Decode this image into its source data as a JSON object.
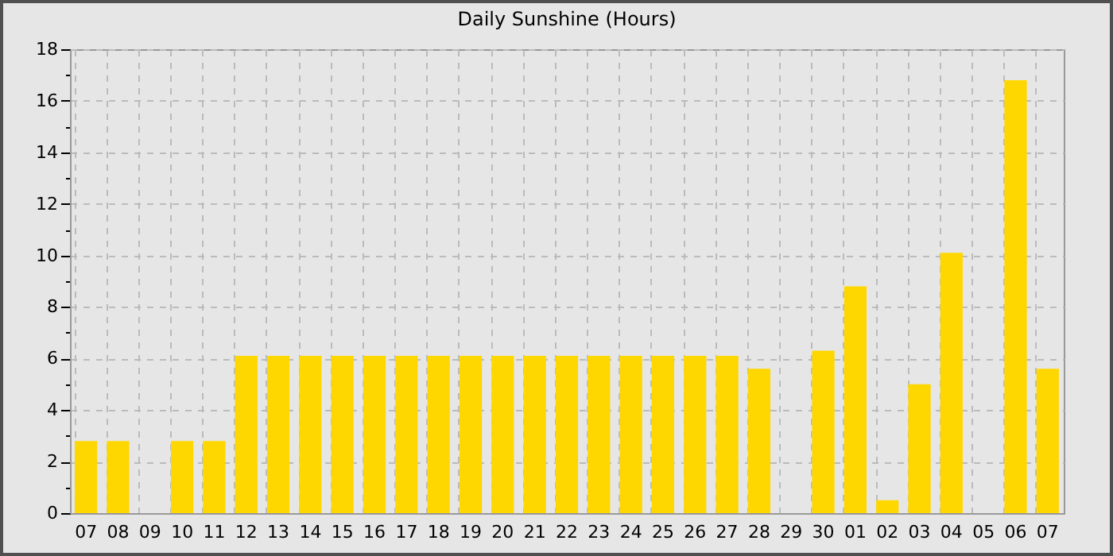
{
  "chart_data": {
    "type": "bar",
    "title": "Daily Sunshine (Hours)",
    "categories": [
      "07",
      "08",
      "09",
      "10",
      "11",
      "12",
      "13",
      "14",
      "15",
      "16",
      "17",
      "18",
      "19",
      "20",
      "21",
      "22",
      "23",
      "24",
      "25",
      "26",
      "27",
      "28",
      "29",
      "30",
      "01",
      "02",
      "03",
      "04",
      "05",
      "06",
      "07"
    ],
    "values": [
      2.8,
      2.8,
      0,
      2.8,
      2.8,
      6.1,
      6.1,
      6.1,
      6.1,
      6.1,
      6.1,
      6.1,
      6.1,
      6.1,
      6.1,
      6.1,
      6.1,
      6.1,
      6.1,
      6.1,
      6.1,
      5.6,
      0,
      6.3,
      8.8,
      0.5,
      5.0,
      10.1,
      0,
      16.8,
      5.6
    ],
    "color": "#ffd700",
    "ylim": [
      0,
      18
    ],
    "yticks": [
      0,
      {
        "value": 1,
        "label": null
      },
      2,
      {
        "value": 3,
        "label": null
      },
      4,
      {
        "value": 5,
        "label": null
      },
      6,
      {
        "value": 7,
        "label": null
      },
      8,
      {
        "value": 9,
        "label": null
      },
      10,
      {
        "value": 11,
        "label": null
      },
      12,
      {
        "value": 13,
        "label": null
      },
      14,
      {
        "value": 15,
        "label": null
      },
      16,
      {
        "value": 17,
        "label": null
      },
      18
    ],
    "grid": true
  }
}
